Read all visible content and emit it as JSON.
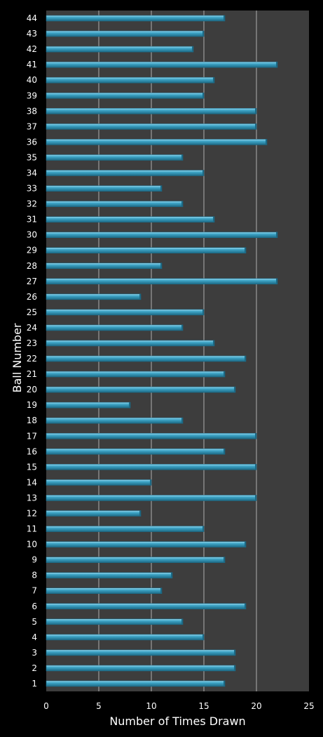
{
  "chart_data": {
    "type": "bar",
    "orientation": "horizontal",
    "xlabel": "Number of Times Drawn",
    "ylabel": "Ball Number",
    "xlim": [
      0,
      25
    ],
    "xticks": [
      0,
      5,
      10,
      15,
      20,
      25
    ],
    "grid": true,
    "categories": [
      "1",
      "2",
      "3",
      "4",
      "5",
      "6",
      "7",
      "8",
      "9",
      "10",
      "11",
      "12",
      "13",
      "14",
      "15",
      "16",
      "17",
      "18",
      "19",
      "20",
      "21",
      "22",
      "23",
      "24",
      "25",
      "26",
      "27",
      "28",
      "29",
      "30",
      "31",
      "32",
      "33",
      "34",
      "35",
      "36",
      "37",
      "38",
      "39",
      "40",
      "41",
      "42",
      "43",
      "44"
    ],
    "values": [
      17,
      18,
      18,
      15,
      13,
      19,
      11,
      12,
      17,
      19,
      15,
      9,
      20,
      10,
      20,
      17,
      20,
      13,
      8,
      18,
      17,
      19,
      16,
      13,
      15,
      9,
      22,
      11,
      19,
      22,
      16,
      13,
      11,
      15,
      13,
      21,
      20,
      20,
      15,
      16,
      22,
      14,
      15,
      17
    ]
  },
  "colors": {
    "background": "#000000",
    "plot_area": "#3d3d3d",
    "grid": "#b0b0b0",
    "bar_fill": "#3fa6c8",
    "bar_light": "#9ad8ee",
    "bar_dark": "#1c6a86",
    "text": "#ffffff"
  }
}
